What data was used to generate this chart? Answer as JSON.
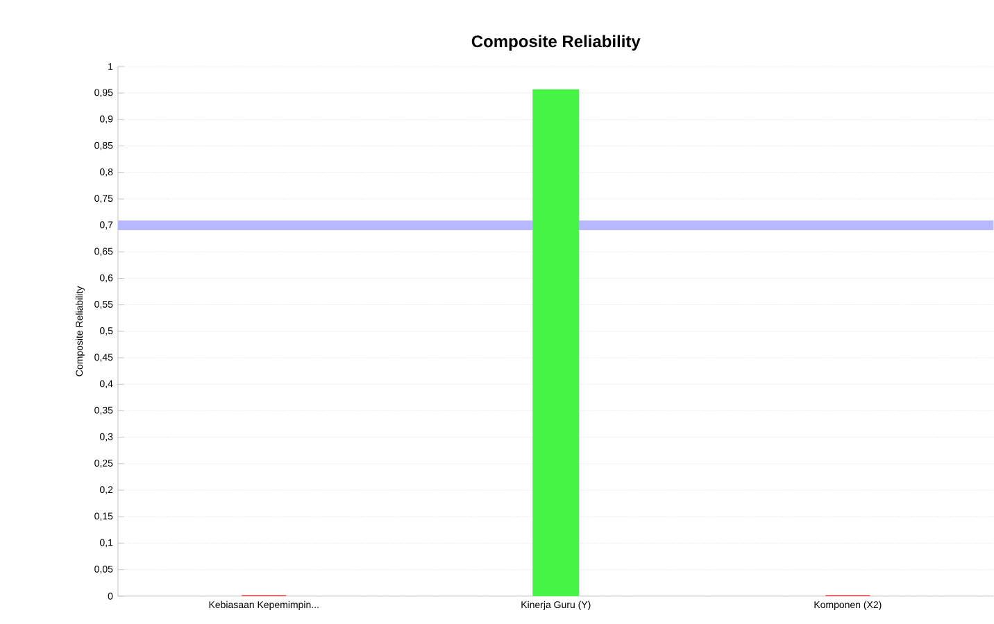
{
  "chart_data": {
    "type": "bar",
    "title": "Composite Reliability",
    "ylabel": "Composite Reliability",
    "categories": [
      "Kebiasaan Kepemimpin...",
      "Kinerja Guru (Y)",
      "Komponen (X2)"
    ],
    "values": [
      0,
      0.955,
      0
    ],
    "colors": [
      "#e84040",
      "#44f544",
      "#e84040"
    ],
    "ylim": [
      0,
      1
    ],
    "yticks": [
      0,
      {
        "value": 0.05,
        "label": "0,05"
      },
      {
        "value": 0.1,
        "label": "0,1"
      },
      {
        "value": 0.15,
        "label": "0,15"
      },
      {
        "value": 0.2,
        "label": "0,2"
      },
      {
        "value": 0.25,
        "label": "0,25"
      },
      {
        "value": 0.3,
        "label": "0,3"
      },
      {
        "value": 0.35,
        "label": "0,35"
      },
      {
        "value": 0.4,
        "label": "0,4"
      },
      {
        "value": 0.45,
        "label": "0,45"
      },
      {
        "value": 0.5,
        "label": "0,5"
      },
      {
        "value": 0.55,
        "label": "0,55"
      },
      {
        "value": 0.6,
        "label": "0,6"
      },
      {
        "value": 0.65,
        "label": "0,65"
      },
      {
        "value": 0.7,
        "label": "0,7"
      },
      {
        "value": 0.75,
        "label": "0,75"
      },
      {
        "value": 0.8,
        "label": "0,8"
      },
      {
        "value": 0.85,
        "label": "0,85"
      },
      {
        "value": 0.9,
        "label": "0,9"
      },
      {
        "value": 0.95,
        "label": "0,95"
      },
      1
    ],
    "ref_lines": [
      {
        "axis": "y",
        "value": 0.7,
        "color": "#b8b8ff"
      }
    ],
    "grid": "y"
  }
}
